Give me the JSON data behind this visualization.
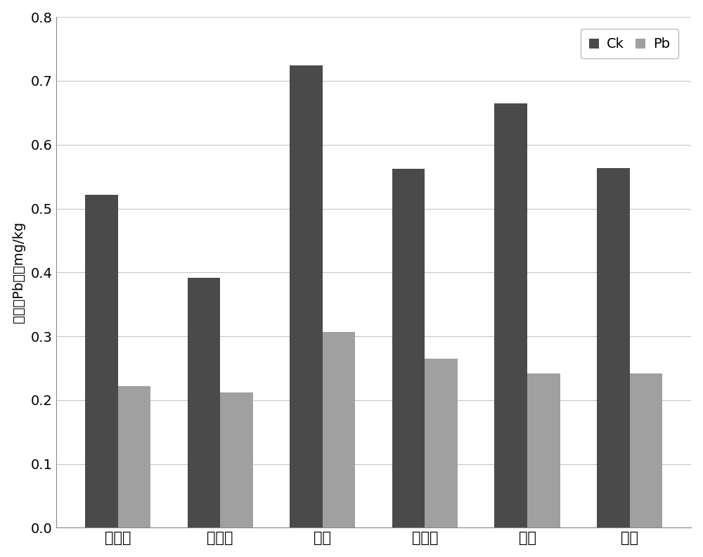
{
  "categories": [
    "油麦菜",
    "小青菜",
    "尹菜",
    "小白菜",
    "菠菜",
    "生菜"
  ],
  "ck_values": [
    0.522,
    0.392,
    0.724,
    0.562,
    0.665,
    0.563
  ],
  "pb_values": [
    0.222,
    0.212,
    0.307,
    0.265,
    0.242,
    0.242
  ],
  "ck_color": "#4a4a4a",
  "pb_color": "#a0a0a0",
  "ylabel": "蔬菜中Pb含量mg/kg",
  "ylim": [
    0,
    0.8
  ],
  "yticks": [
    0,
    0.1,
    0.2,
    0.3,
    0.4,
    0.5,
    0.6,
    0.7,
    0.8
  ],
  "legend_labels": [
    "Ck",
    "Pb"
  ],
  "bar_width": 0.32,
  "figure_bg": "#ffffff",
  "axes_bg": "#ffffff",
  "grid_color": "#c8c8c8",
  "spine_color": "#888888"
}
